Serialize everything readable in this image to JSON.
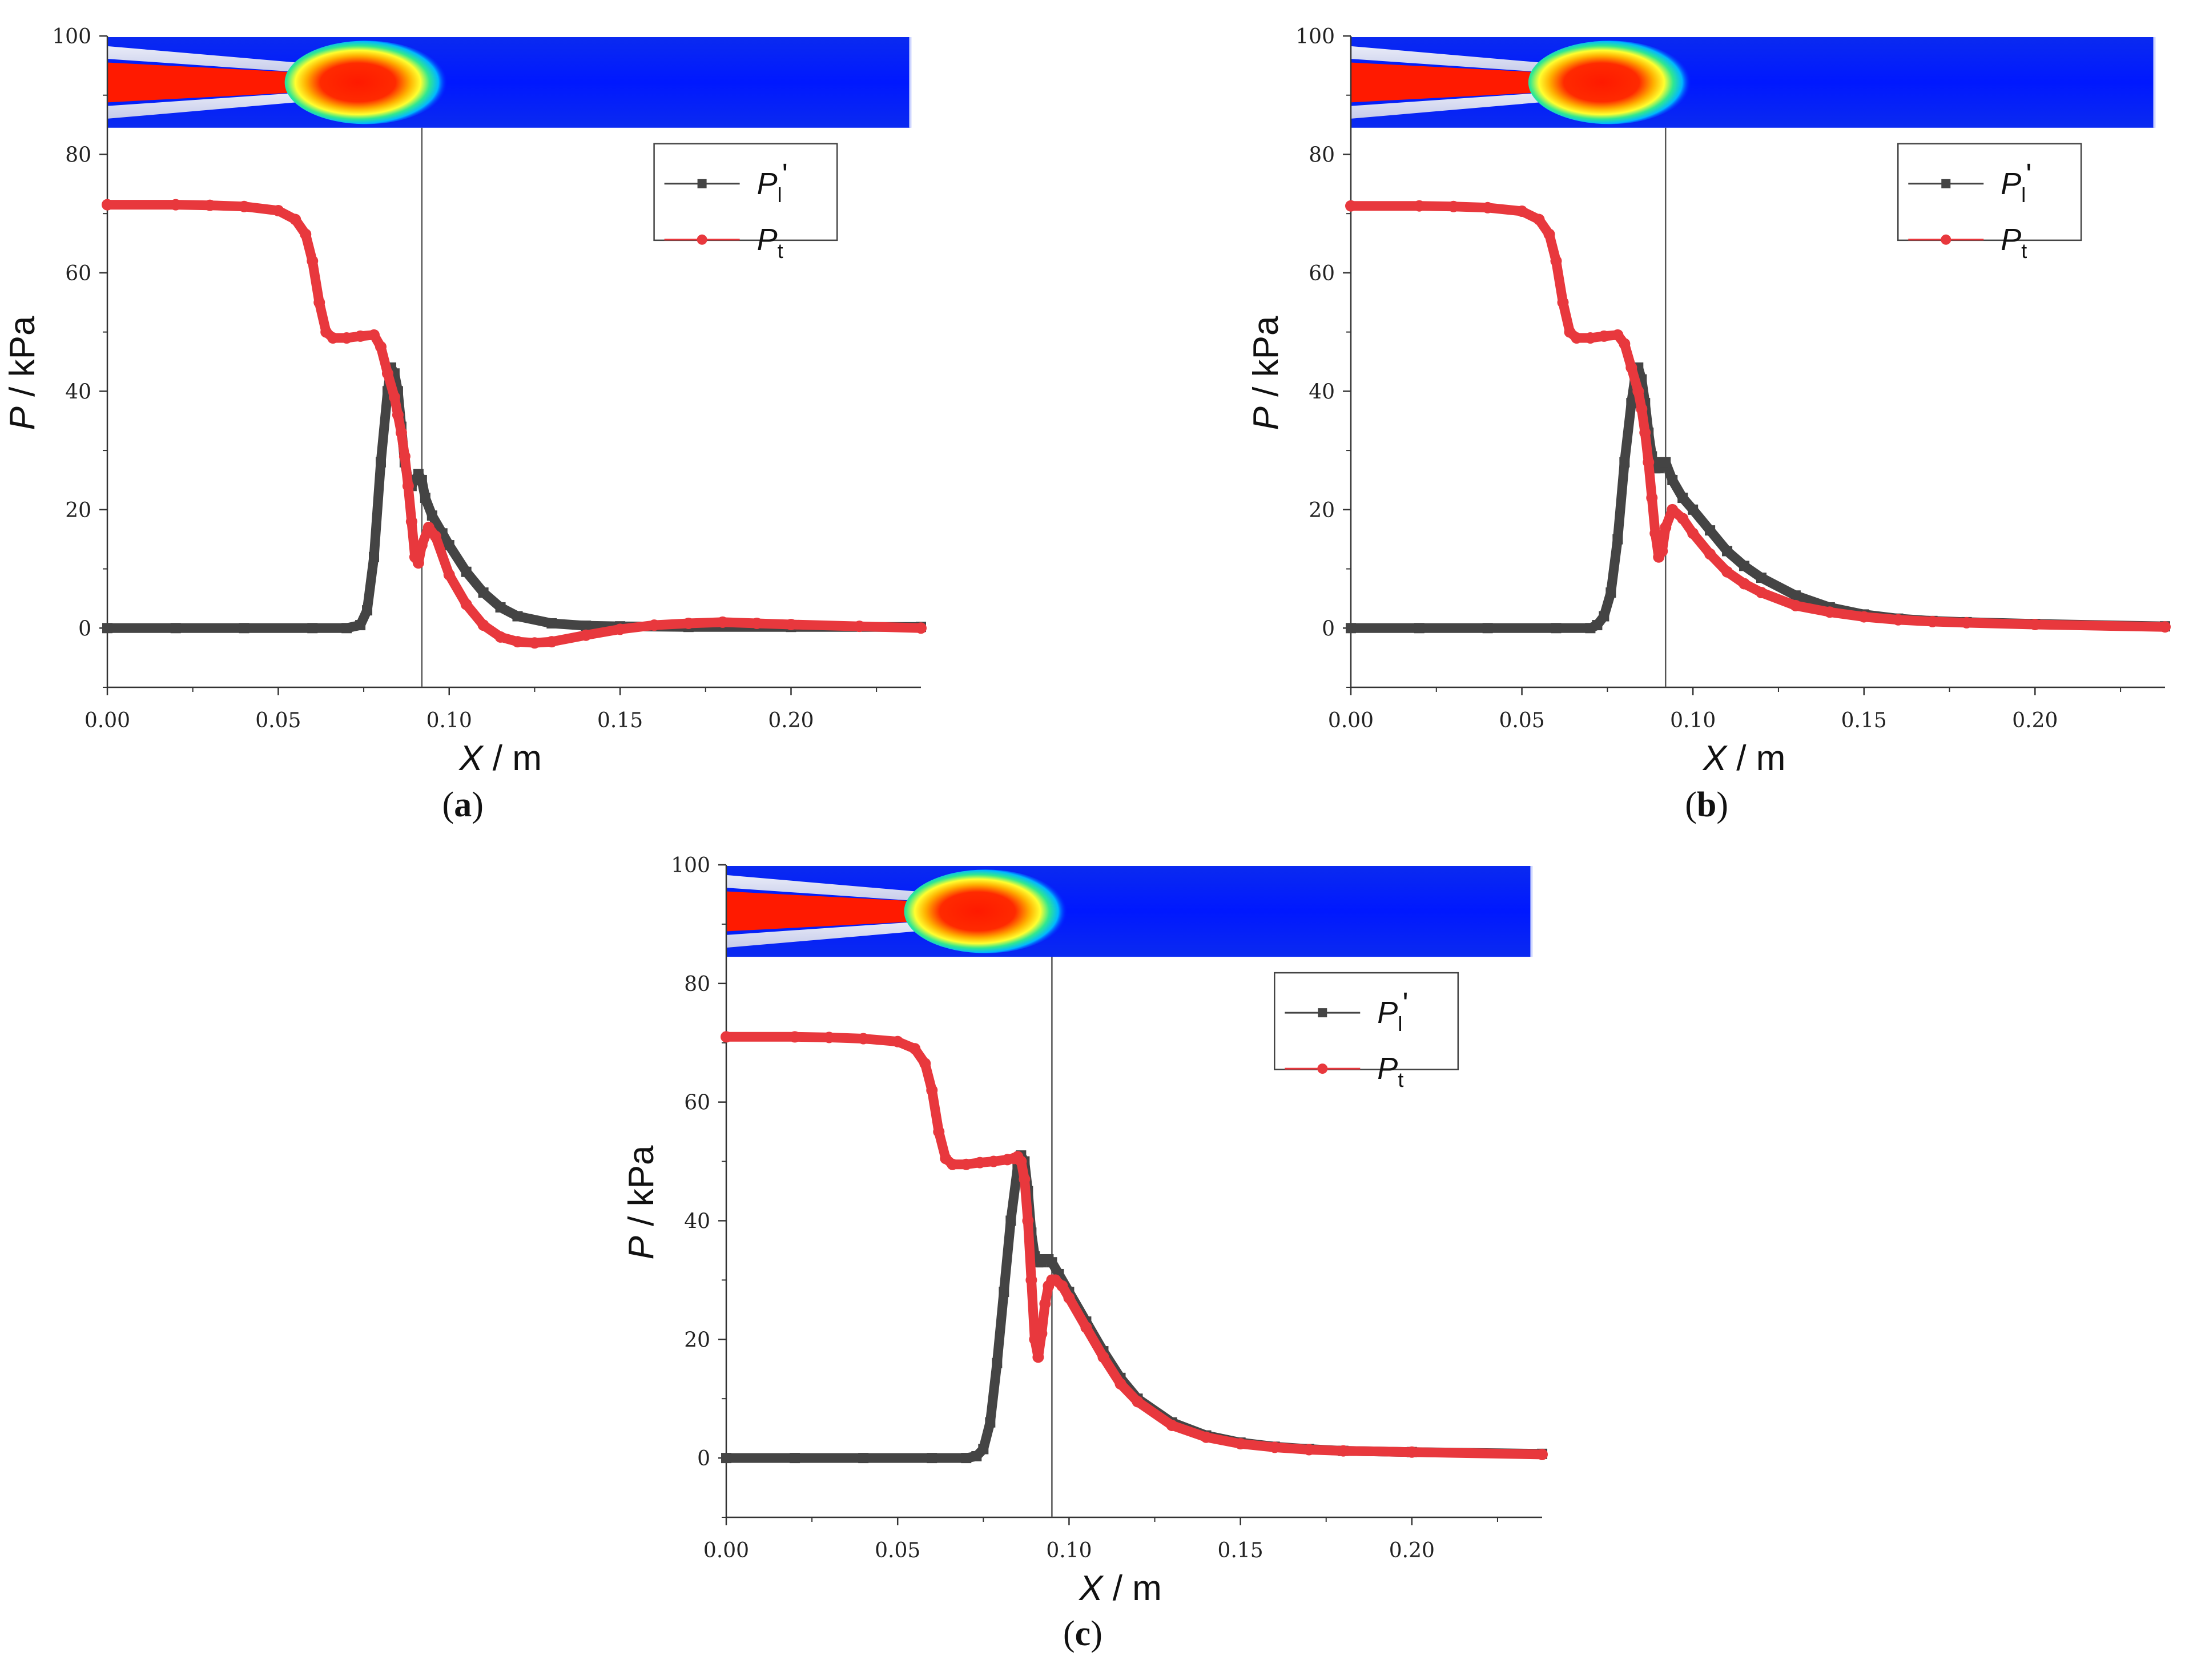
{
  "chart_data": [
    {
      "id": "a",
      "type": "scatter",
      "caption_letter": "a",
      "xlabel_italic": "X",
      "xlabel_unit": " / m",
      "ylabel_italic": "P",
      "ylabel_unit": " / kPa",
      "xlim": [
        0.0,
        0.238
      ],
      "ylim": [
        -10,
        100
      ],
      "xticks": [
        "0.00",
        "0.05",
        "0.10",
        "0.15",
        "0.20"
      ],
      "yticks": [
        "0",
        "20",
        "40",
        "60",
        "80",
        "100"
      ],
      "vline_x": 0.092,
      "legend_placement": "upper-right",
      "inset": "contour field image of nozzle jet across top of plot",
      "series": [
        {
          "name": "P_l'",
          "label_main": "P",
          "label_sub": "l",
          "label_suffix": "'",
          "color": "#444444",
          "marker": "square",
          "x": [
            0.0,
            0.02,
            0.04,
            0.06,
            0.07,
            0.074,
            0.076,
            0.078,
            0.08,
            0.082,
            0.083,
            0.084,
            0.085,
            0.086,
            0.087,
            0.088,
            0.089,
            0.09,
            0.091,
            0.092,
            0.093,
            0.095,
            0.098,
            0.1,
            0.105,
            0.11,
            0.115,
            0.12,
            0.13,
            0.14,
            0.15,
            0.17,
            0.2,
            0.238
          ],
          "y": [
            0,
            0,
            0,
            0,
            0,
            0.5,
            3,
            12,
            28,
            40,
            44,
            43,
            40,
            34,
            28,
            25,
            24,
            25,
            26,
            25,
            22,
            19,
            16,
            14,
            9.5,
            6,
            3.5,
            2,
            0.8,
            0.4,
            0.3,
            0.2,
            0.2,
            0.2
          ]
        },
        {
          "name": "P_t",
          "label_main": "P",
          "label_sub": "t",
          "label_suffix": "",
          "color": "#e8383d",
          "marker": "circle",
          "x": [
            0.0,
            0.02,
            0.03,
            0.04,
            0.05,
            0.055,
            0.058,
            0.06,
            0.062,
            0.064,
            0.066,
            0.07,
            0.074,
            0.078,
            0.08,
            0.082,
            0.084,
            0.085,
            0.086,
            0.087,
            0.088,
            0.089,
            0.09,
            0.091,
            0.092,
            0.094,
            0.096,
            0.1,
            0.105,
            0.11,
            0.115,
            0.12,
            0.125,
            0.13,
            0.14,
            0.15,
            0.16,
            0.17,
            0.18,
            0.19,
            0.2,
            0.22,
            0.238
          ],
          "y": [
            71.5,
            71.5,
            71.4,
            71.2,
            70.5,
            69,
            66.5,
            62,
            55,
            50,
            49,
            49,
            49.3,
            49.5,
            47.5,
            43,
            39,
            36,
            33,
            29,
            24,
            18,
            12,
            11,
            14,
            17,
            15.5,
            9,
            4,
            0.5,
            -1.5,
            -2.3,
            -2.5,
            -2.3,
            -1.2,
            -0.2,
            0.5,
            0.8,
            1.0,
            0.8,
            0.6,
            0.3,
            0.0
          ]
        }
      ]
    },
    {
      "id": "b",
      "type": "scatter",
      "caption_letter": "b",
      "xlabel_italic": "X",
      "xlabel_unit": " / m",
      "ylabel_italic": "P",
      "ylabel_unit": " / kPa",
      "xlim": [
        0.0,
        0.238
      ],
      "ylim": [
        -10,
        100
      ],
      "xticks": [
        "0.00",
        "0.05",
        "0.10",
        "0.15",
        "0.20"
      ],
      "yticks": [
        "0",
        "20",
        "40",
        "60",
        "80",
        "100"
      ],
      "vline_x": 0.092,
      "legend_placement": "upper-right",
      "inset": "contour field image of nozzle jet across top of plot",
      "series": [
        {
          "name": "P_l'",
          "label_main": "P",
          "label_sub": "l",
          "label_suffix": "'",
          "color": "#444444",
          "marker": "square",
          "x": [
            0.0,
            0.02,
            0.04,
            0.06,
            0.07,
            0.072,
            0.074,
            0.076,
            0.078,
            0.08,
            0.082,
            0.083,
            0.084,
            0.085,
            0.086,
            0.087,
            0.088,
            0.089,
            0.09,
            0.091,
            0.092,
            0.094,
            0.097,
            0.1,
            0.105,
            0.11,
            0.115,
            0.12,
            0.13,
            0.14,
            0.15,
            0.16,
            0.17,
            0.18,
            0.2,
            0.238
          ],
          "y": [
            0,
            0,
            0,
            0,
            0,
            0.5,
            2,
            6,
            15,
            28,
            38,
            42,
            44,
            42,
            38,
            33,
            29,
            27,
            27,
            28,
            28,
            25,
            22,
            20,
            16.5,
            13,
            10.5,
            8.5,
            5.5,
            3.5,
            2.3,
            1.6,
            1.2,
            1.0,
            0.7,
            0.3
          ]
        },
        {
          "name": "P_t",
          "label_main": "P",
          "label_sub": "t",
          "label_suffix": "",
          "color": "#e8383d",
          "marker": "circle",
          "x": [
            0.0,
            0.02,
            0.03,
            0.04,
            0.05,
            0.055,
            0.058,
            0.06,
            0.062,
            0.064,
            0.066,
            0.07,
            0.074,
            0.078,
            0.08,
            0.082,
            0.084,
            0.085,
            0.086,
            0.087,
            0.088,
            0.089,
            0.09,
            0.091,
            0.092,
            0.094,
            0.097,
            0.1,
            0.105,
            0.11,
            0.115,
            0.12,
            0.13,
            0.14,
            0.15,
            0.16,
            0.17,
            0.18,
            0.2,
            0.238
          ],
          "y": [
            71.3,
            71.3,
            71.2,
            71,
            70.4,
            69,
            66.5,
            62,
            55,
            50,
            49,
            49,
            49.3,
            49.5,
            48,
            44,
            40,
            37,
            33,
            28,
            22,
            16,
            12,
            13,
            17,
            20,
            18.5,
            16,
            12.5,
            9.5,
            7.5,
            6,
            3.8,
            2.7,
            1.9,
            1.4,
            1.1,
            0.9,
            0.6,
            0.2
          ]
        }
      ]
    },
    {
      "id": "c",
      "type": "scatter",
      "caption_letter": "c",
      "xlabel_italic": "X",
      "xlabel_unit": " / m",
      "ylabel_italic": "P",
      "ylabel_unit": " / kPa",
      "xlim": [
        0.0,
        0.238
      ],
      "ylim": [
        -10,
        100
      ],
      "xticks": [
        "0.00",
        "0.05",
        "0.10",
        "0.15",
        "0.20"
      ],
      "yticks": [
        "0",
        "20",
        "40",
        "60",
        "80",
        "100"
      ],
      "vline_x": 0.095,
      "legend_placement": "upper-right",
      "inset": "contour field image of nozzle jet across top of plot",
      "series": [
        {
          "name": "P_l'",
          "label_main": "P",
          "label_sub": "l",
          "label_suffix": "'",
          "color": "#444444",
          "marker": "square",
          "x": [
            0.0,
            0.02,
            0.04,
            0.06,
            0.07,
            0.073,
            0.075,
            0.077,
            0.079,
            0.081,
            0.083,
            0.085,
            0.086,
            0.087,
            0.088,
            0.089,
            0.09,
            0.091,
            0.092,
            0.093,
            0.094,
            0.095,
            0.097,
            0.1,
            0.105,
            0.11,
            0.115,
            0.12,
            0.13,
            0.14,
            0.15,
            0.16,
            0.17,
            0.18,
            0.2,
            0.238
          ],
          "y": [
            0,
            0,
            0,
            0,
            0,
            0.3,
            1.5,
            6,
            16,
            28,
            40,
            49,
            51,
            50,
            45,
            38,
            34,
            33,
            33,
            33.5,
            33.5,
            33,
            31,
            28,
            23,
            18,
            13.5,
            10,
            6,
            3.8,
            2.6,
            1.9,
            1.5,
            1.2,
            1.0,
            0.7
          ]
        },
        {
          "name": "P_t",
          "label_main": "P",
          "label_sub": "t",
          "label_suffix": "",
          "color": "#e8383d",
          "marker": "circle",
          "x": [
            0.0,
            0.02,
            0.03,
            0.04,
            0.05,
            0.055,
            0.058,
            0.06,
            0.062,
            0.064,
            0.066,
            0.07,
            0.074,
            0.078,
            0.082,
            0.084,
            0.085,
            0.086,
            0.087,
            0.088,
            0.089,
            0.09,
            0.091,
            0.092,
            0.093,
            0.094,
            0.095,
            0.096,
            0.098,
            0.1,
            0.105,
            0.11,
            0.115,
            0.12,
            0.13,
            0.14,
            0.15,
            0.16,
            0.17,
            0.18,
            0.2,
            0.238
          ],
          "y": [
            71,
            71,
            70.9,
            70.7,
            70.2,
            69,
            66.5,
            62,
            55,
            50.5,
            49.5,
            49.5,
            49.8,
            50,
            50.3,
            50.5,
            50.8,
            50,
            47,
            40,
            30,
            20,
            17,
            21,
            26,
            29,
            30,
            30,
            29,
            27,
            22,
            17,
            12.5,
            9.5,
            5.5,
            3.5,
            2.4,
            1.8,
            1.4,
            1.2,
            1.0,
            0.6
          ]
        }
      ]
    }
  ]
}
